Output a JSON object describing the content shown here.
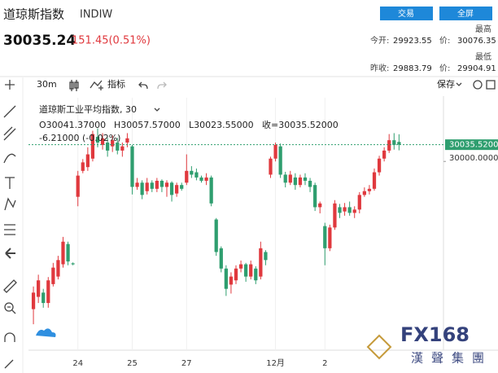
{
  "header": {
    "name": "道琼斯指数",
    "code": "INDIW",
    "trade_button": "交易",
    "fullscreen_button": "全屏",
    "price": "30035.24",
    "change": "151.45(0.51%)"
  },
  "quote": {
    "high_label": "最高",
    "open_label": "今开:",
    "open": "29923.55",
    "high_price_label": "价:",
    "high": "30076.35",
    "low_label": "最低",
    "prev_close_label": "昨收:",
    "prev_close": "29883.79",
    "low_price_label": "价:",
    "low": "29904.91"
  },
  "toolbar": {
    "interval": "30m",
    "indicators": "指标",
    "save": "保存"
  },
  "chart_data": {
    "type": "candlestick",
    "title": "道琼斯工业平均指数, 30",
    "ohlc_text": [
      "O30041.37000",
      "H30057.57000",
      "L30023.55000",
      "收=30035.52000"
    ],
    "change_text": "-6.21000 (-0.02%)",
    "up_color": "#e0393e",
    "down_color": "#2f9e6f",
    "last_line_color": "#2f9e6f",
    "xlim": [
      -1,
      83
    ],
    "xticks": [
      {
        "value": 9,
        "label": "24"
      },
      {
        "value": 20,
        "label": "25"
      },
      {
        "value": 31,
        "label": "27"
      },
      {
        "value": 49,
        "label": "12月"
      },
      {
        "value": 59,
        "label": "2"
      }
    ],
    "ylim": [
      29600,
      30135
    ],
    "yticks": [
      {
        "value": 30035.52,
        "label": "30035.52000"
      },
      {
        "value": 30000,
        "label": "30000.00000"
      }
    ],
    "open": [
      29687,
      29713,
      29722,
      29700,
      29740,
      29756,
      29782,
      29825,
      29784,
      29925,
      29980,
      29988,
      30006,
      30052,
      30035,
      30040,
      30032,
      30040,
      30023,
      30040,
      30032,
      29946,
      29955,
      29937,
      29955,
      29942,
      29959,
      29946,
      29955,
      29932,
      29950,
      29955,
      29980,
      29977,
      29966,
      29959,
      29966,
      29877,
      29816,
      29773,
      29739,
      29748,
      29773,
      29782,
      29756,
      29773,
      29756,
      29808,
      29972,
      30006,
      30032,
      29972,
      29955,
      29966,
      29950,
      29966,
      29959,
      29950,
      29903,
      29863,
      29816,
      29860,
      29903,
      29894,
      29903,
      29891,
      29898,
      29929,
      29937,
      29942,
      29977,
      30006,
      30023,
      30045,
      30041.37
    ],
    "high": [
      29735,
      29760,
      29730,
      29755,
      29785,
      29800,
      29840,
      29830,
      29786,
      29980,
      30005,
      30030,
      30065,
      30070,
      30060,
      30050,
      30055,
      30050,
      30040,
      30060,
      30035,
      29965,
      29960,
      29965,
      29960,
      29965,
      29962,
      29960,
      29958,
      29955,
      29955,
      30015,
      29990,
      29985,
      29970,
      29975,
      29970,
      29880,
      29820,
      29780,
      29765,
      29780,
      29790,
      29785,
      29790,
      29778,
      29830,
      29812,
      30010,
      30040,
      30038,
      29978,
      29980,
      29975,
      29972,
      29975,
      29965,
      29955,
      29915,
      29870,
      29866,
      29918,
      29910,
      29912,
      29915,
      29905,
      29935,
      29945,
      29950,
      29985,
      30012,
      30030,
      30058,
      30060,
      30057.57
    ],
    "low": [
      29655,
      29700,
      29690,
      29690,
      29735,
      29750,
      29775,
      29780,
      29780,
      29905,
      29975,
      29980,
      30000,
      30030,
      30025,
      30010,
      30020,
      30015,
      30010,
      30030,
      29930,
      29940,
      29920,
      29930,
      29935,
      29935,
      29935,
      29925,
      29915,
      29925,
      29938,
      29950,
      29965,
      29960,
      29955,
      29950,
      29905,
      29800,
      29765,
      29715,
      29720,
      29740,
      29765,
      29745,
      29750,
      29740,
      29750,
      29780,
      29965,
      30000,
      29965,
      29945,
      29950,
      29940,
      29945,
      29950,
      29935,
      29895,
      29890,
      29780,
      29810,
      29855,
      29880,
      29885,
      29885,
      29880,
      29890,
      29925,
      29930,
      29938,
      29970,
      30000,
      30018,
      30025,
      30023.55
    ],
    "close": [
      29722,
      29748,
      29700,
      29748,
      29775,
      29791,
      29830,
      29788,
      29782,
      29970,
      29998,
      30015,
      30058,
      30040,
      30049,
      30023,
      30045,
      30023,
      30032,
      30049,
      29946,
      29955,
      29929,
      29955,
      29942,
      29959,
      29946,
      29955,
      29929,
      29950,
      29942,
      29980,
      29972,
      29966,
      29959,
      29966,
      29911,
      29808,
      29773,
      29730,
      29756,
      29773,
      29782,
      29756,
      29782,
      29748,
      29816,
      29791,
      30006,
      30035,
      29972,
      29955,
      29972,
      29950,
      29966,
      29959,
      29946,
      29903,
      29911,
      29816,
      29860,
      29911,
      29891,
      29903,
      29891,
      29898,
      29929,
      29937,
      29942,
      29977,
      30006,
      30023,
      30045,
      30035,
      30035.52
    ]
  },
  "watermark": {
    "brand": "FX168",
    "subtitle": "漢聲集團"
  }
}
